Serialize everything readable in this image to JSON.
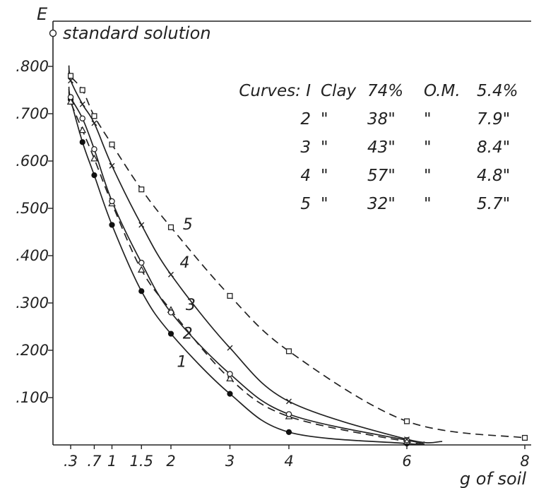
{
  "chart_data": {
    "type": "line",
    "title": "",
    "xlabel": "g of soil",
    "ylabel": "E",
    "xlim": [
      0,
      8
    ],
    "ylim": [
      0,
      0.9
    ],
    "x_ticks": [
      {
        "value": 0.3,
        "label": ".3"
      },
      {
        "value": 0.7,
        "label": ".7"
      },
      {
        "value": 1,
        "label": "1"
      },
      {
        "value": 1.5,
        "label": "1.5"
      },
      {
        "value": 2,
        "label": "2"
      },
      {
        "value": 3,
        "label": "3"
      },
      {
        "value": 4,
        "label": "4"
      },
      {
        "value": 6,
        "label": "6"
      },
      {
        "value": 8,
        "label": "8"
      }
    ],
    "y_ticks": [
      {
        "value": 0.1,
        "label": ".100"
      },
      {
        "value": 0.2,
        "label": ".200"
      },
      {
        "value": 0.3,
        "label": ".300"
      },
      {
        "value": 0.4,
        "label": ".400"
      },
      {
        "value": 0.5,
        "label": ".500"
      },
      {
        "value": 0.6,
        "label": ".600"
      },
      {
        "value": 0.7,
        "label": ".700"
      },
      {
        "value": 0.8,
        "label": ".800"
      }
    ],
    "standard_solution": {
      "x": 0,
      "y": 0.87,
      "label": "standard solution"
    },
    "legend": {
      "placement": "top-right",
      "rows": [
        [
          "Curves: I",
          "Clay",
          "74%",
          "O.M.",
          "5.4%"
        ],
        [
          "2",
          "\"",
          "38\"",
          "\"",
          "7.9\""
        ],
        [
          "3",
          "\"",
          "43\"",
          "\"",
          "8.4\""
        ],
        [
          "4",
          "\"",
          "57\"",
          "\"",
          "4.8\""
        ],
        [
          "5",
          "\"",
          "32\"",
          "\"",
          "5.7\""
        ]
      ]
    },
    "series": [
      {
        "name": "1",
        "style": "solid",
        "marker": "filled-circle",
        "x": [
          0.3,
          0.5,
          0.7,
          1,
          1.5,
          2,
          3,
          4,
          6
        ],
        "y": [
          0.73,
          0.64,
          0.57,
          0.465,
          0.325,
          0.235,
          0.108,
          0.027,
          0.003
        ],
        "line_end_x": 6.3,
        "label_at": [
          2.1,
          0.165
        ]
      },
      {
        "name": "2",
        "style": "dashed",
        "marker": "triangle",
        "x": [
          0.3,
          0.5,
          0.7,
          1,
          1.5,
          2,
          3,
          4,
          6
        ],
        "y": [
          0.725,
          0.665,
          0.605,
          0.51,
          0.37,
          0.285,
          0.14,
          0.06,
          0.007
        ],
        "line_end_x": 6.3,
        "label_at": [
          2.2,
          0.225
        ]
      },
      {
        "name": "3",
        "style": "solid",
        "marker": "circle",
        "x": [
          0.3,
          0.5,
          0.7,
          1,
          1.5,
          2,
          3,
          4,
          6
        ],
        "y": [
          0.735,
          0.69,
          0.625,
          0.515,
          0.385,
          0.28,
          0.15,
          0.065,
          0.01
        ],
        "line_end_x": 6.3,
        "label_at": [
          2.25,
          0.285
        ]
      },
      {
        "name": "4",
        "style": "solid",
        "marker": "cross",
        "x": [
          0.3,
          0.5,
          0.7,
          1,
          1.5,
          2,
          3,
          4,
          6
        ],
        "y": [
          0.77,
          0.72,
          0.68,
          0.59,
          0.465,
          0.36,
          0.205,
          0.092,
          0.012
        ],
        "line_end_x": 6.6,
        "label_at": [
          2.15,
          0.375
        ]
      },
      {
        "name": "5",
        "style": "dashed",
        "marker": "square",
        "x": [
          0.3,
          0.5,
          0.7,
          1,
          1.5,
          2,
          3,
          4,
          6,
          8
        ],
        "y": [
          0.78,
          0.75,
          0.695,
          0.635,
          0.54,
          0.46,
          0.315,
          0.198,
          0.05,
          0.015
        ],
        "line_end_x": 8,
        "label_at": [
          2.2,
          0.455
        ]
      }
    ]
  }
}
